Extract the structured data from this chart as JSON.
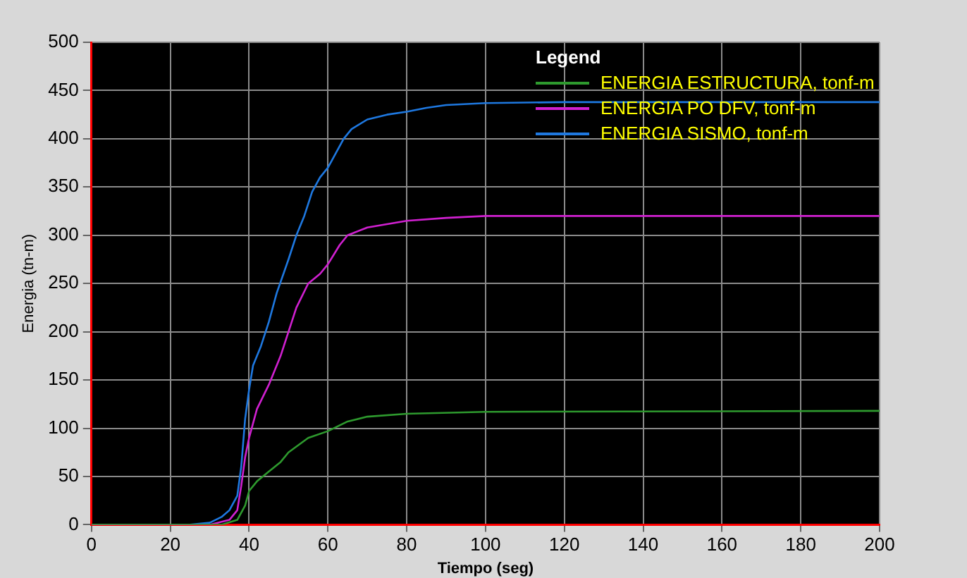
{
  "chart_data": {
    "type": "line",
    "xlabel": "Tiempo (seg)",
    "ylabel": "Energia (tn-m)",
    "legend_title": "Legend",
    "xlim": [
      0,
      200
    ],
    "xticks": [
      0,
      20,
      40,
      60,
      80,
      100,
      120,
      140,
      160,
      180,
      200
    ],
    "ylim": [
      0,
      500
    ],
    "yticks": [
      0,
      50,
      100,
      150,
      200,
      250,
      300,
      350,
      400,
      450,
      500
    ],
    "grid": true,
    "legend": "top right",
    "marker": "none",
    "line_style": "solid",
    "series": [
      {
        "name": "ENERGIA ESTRUCTURA, tonf-m",
        "color": "#2e9a2e",
        "x": [
          0,
          33,
          37,
          39,
          40,
          42,
          45,
          48,
          50,
          55,
          60,
          65,
          70,
          80,
          100,
          200
        ],
        "values": [
          0,
          0,
          5,
          20,
          35,
          45,
          55,
          65,
          75,
          90,
          97,
          107,
          112,
          115,
          117,
          118
        ]
      },
      {
        "name": "ENERGIA PO DFV, tonf-m",
        "color": "#d020d0",
        "x": [
          0,
          30,
          35,
          37,
          38,
          39,
          40,
          42,
          45,
          48,
          50,
          52,
          55,
          58,
          60,
          63,
          65,
          70,
          80,
          90,
          100,
          200
        ],
        "values": [
          0,
          0,
          5,
          15,
          40,
          70,
          90,
          120,
          145,
          175,
          200,
          225,
          250,
          260,
          270,
          290,
          300,
          308,
          315,
          318,
          320,
          320
        ]
      },
      {
        "name": "ENERGIA SISMO, tonf-m",
        "color": "#1e78e0",
        "x": [
          0,
          25,
          30,
          33,
          35,
          37,
          38,
          39,
          40,
          41,
          43,
          45,
          47,
          50,
          52,
          54,
          56,
          58,
          60,
          62,
          64,
          66,
          70,
          75,
          80,
          85,
          90,
          100,
          120,
          200
        ],
        "values": [
          0,
          0,
          2,
          8,
          15,
          30,
          60,
          110,
          140,
          165,
          185,
          210,
          240,
          275,
          300,
          320,
          345,
          360,
          370,
          385,
          400,
          410,
          420,
          425,
          428,
          432,
          435,
          437,
          438,
          438
        ]
      }
    ]
  }
}
